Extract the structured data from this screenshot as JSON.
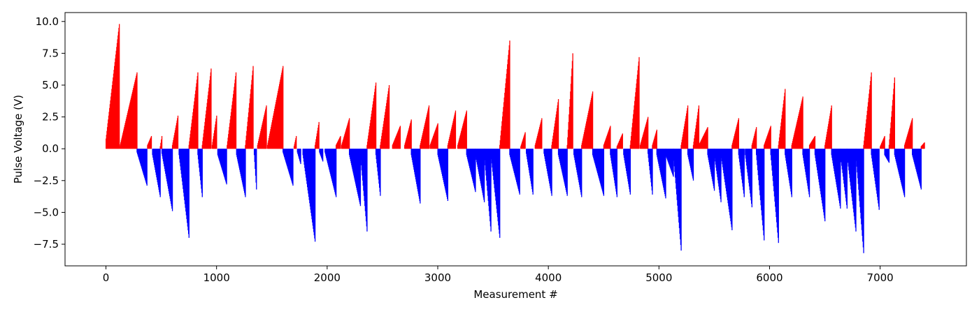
{
  "chart_data": {
    "type": "bar",
    "title": "",
    "xlabel": "Measurement #",
    "ylabel": "Pulse Voltage (V)",
    "xlim": [
      -370,
      7780
    ],
    "ylim": [
      -9.2,
      10.7
    ],
    "xticks": [
      0,
      1000,
      2000,
      3000,
      4000,
      5000,
      6000,
      7000
    ],
    "xtick_labels": [
      "0",
      "1000",
      "2000",
      "3000",
      "4000",
      "5000",
      "6000",
      "7000"
    ],
    "yticks": [
      -7.5,
      -5.0,
      -2.5,
      0.0,
      2.5,
      5.0,
      7.5,
      10.0
    ],
    "ytick_labels": [
      "−7.5",
      "−5.0",
      "−2.5",
      "0.0",
      "2.5",
      "5.0",
      "7.5",
      "10.0"
    ],
    "grid": false,
    "bar_width": 1,
    "colors": {
      "positive": "#ff0000",
      "negative": "#0000ff"
    },
    "series": [
      {
        "color_rule": "red for positive pulses, blue for negative pulses",
        "ramps": [
          [
            0,
            120,
            0.8,
            9.8
          ],
          [
            125,
            280,
            0.2,
            6.0
          ],
          [
            280,
            370,
            -0.3,
            -2.9
          ],
          [
            375,
            410,
            0.3,
            1.0
          ],
          [
            420,
            490,
            -0.5,
            -3.8
          ],
          [
            490,
            505,
            0.2,
            1.0
          ],
          [
            505,
            600,
            -0.4,
            -4.9
          ],
          [
            600,
            650,
            0.3,
            2.6
          ],
          [
            660,
            750,
            -0.5,
            -7.0
          ],
          [
            750,
            830,
            0.3,
            6.0
          ],
          [
            830,
            870,
            -0.5,
            -3.8
          ],
          [
            870,
            950,
            0.3,
            6.3
          ],
          [
            960,
            1000,
            0.3,
            2.6
          ],
          [
            1010,
            1090,
            -0.5,
            -2.8
          ],
          [
            1095,
            1175,
            0.3,
            6.0
          ],
          [
            1180,
            1260,
            -0.5,
            -3.8
          ],
          [
            1260,
            1330,
            0.3,
            6.5
          ],
          [
            1340,
            1360,
            -0.5,
            -3.2
          ],
          [
            1370,
            1450,
            0.3,
            3.4
          ],
          [
            1460,
            1600,
            0.3,
            6.5
          ],
          [
            1600,
            1690,
            -0.3,
            -2.9
          ],
          [
            1700,
            1720,
            0.2,
            1.0
          ],
          [
            1730,
            1760,
            -0.3,
            -1.2
          ],
          [
            1780,
            1890,
            -0.5,
            -7.3
          ],
          [
            1890,
            1925,
            0.3,
            2.1
          ],
          [
            1930,
            1960,
            -0.3,
            -1.0
          ],
          [
            1980,
            2080,
            -0.3,
            -3.8
          ],
          [
            2080,
            2120,
            0.3,
            1.0
          ],
          [
            2130,
            2200,
            0.3,
            2.4
          ],
          [
            2200,
            2300,
            -0.5,
            -4.5
          ],
          [
            2300,
            2360,
            -0.5,
            -6.5
          ],
          [
            2360,
            2440,
            0.3,
            5.2
          ],
          [
            2440,
            2480,
            -0.5,
            -3.7
          ],
          [
            2480,
            2560,
            0.3,
            5.0
          ],
          [
            2590,
            2660,
            0.3,
            1.8
          ],
          [
            2700,
            2760,
            0.3,
            2.3
          ],
          [
            2760,
            2840,
            -0.5,
            -4.3
          ],
          [
            2840,
            2920,
            0.3,
            3.4
          ],
          [
            2930,
            3000,
            0.3,
            2.0
          ],
          [
            3000,
            3090,
            -0.5,
            -4.1
          ],
          [
            3090,
            3160,
            0.3,
            3.0
          ],
          [
            3180,
            3260,
            0.3,
            3.0
          ],
          [
            3260,
            3340,
            -0.5,
            -3.4
          ],
          [
            3340,
            3420,
            -0.5,
            -4.2
          ],
          [
            3420,
            3480,
            -0.5,
            -6.5
          ],
          [
            3480,
            3560,
            -0.5,
            -7.0
          ],
          [
            3560,
            3650,
            0.3,
            8.5
          ],
          [
            3650,
            3740,
            -0.5,
            -3.6
          ],
          [
            3750,
            3790,
            0.2,
            1.3
          ],
          [
            3800,
            3860,
            -0.4,
            -3.6
          ],
          [
            3880,
            3940,
            0.3,
            2.4
          ],
          [
            3960,
            4030,
            -0.4,
            -3.7
          ],
          [
            4030,
            4090,
            0.3,
            3.9
          ],
          [
            4090,
            4170,
            -0.5,
            -3.7
          ],
          [
            4170,
            4220,
            0.3,
            7.5
          ],
          [
            4230,
            4300,
            -0.5,
            -3.8
          ],
          [
            4300,
            4400,
            0.3,
            4.5
          ],
          [
            4400,
            4500,
            -0.5,
            -3.7
          ],
          [
            4500,
            4560,
            0.3,
            1.8
          ],
          [
            4560,
            4620,
            -0.5,
            -3.8
          ],
          [
            4620,
            4670,
            0.2,
            1.2
          ],
          [
            4680,
            4740,
            -0.5,
            -3.6
          ],
          [
            4740,
            4820,
            0.3,
            7.2
          ],
          [
            4830,
            4900,
            0.3,
            2.5
          ],
          [
            4900,
            4940,
            -0.4,
            -3.6
          ],
          [
            4940,
            4980,
            0.3,
            1.5
          ],
          [
            4980,
            5060,
            -0.5,
            -3.9
          ],
          [
            5060,
            5130,
            -0.5,
            -2.2
          ],
          [
            5130,
            5200,
            -0.5,
            -8.0
          ],
          [
            5200,
            5260,
            0.3,
            3.4
          ],
          [
            5260,
            5310,
            -0.5,
            -2.5
          ],
          [
            5310,
            5360,
            0.3,
            3.4
          ],
          [
            5360,
            5440,
            0.3,
            1.7
          ],
          [
            5440,
            5500,
            -0.5,
            -3.3
          ],
          [
            5500,
            5560,
            -0.5,
            -4.2
          ],
          [
            5560,
            5660,
            -0.5,
            -6.4
          ],
          [
            5660,
            5720,
            0.3,
            2.4
          ],
          [
            5720,
            5770,
            -0.5,
            -3.8
          ],
          [
            5780,
            5840,
            -0.5,
            -4.6
          ],
          [
            5840,
            5880,
            0.3,
            1.7
          ],
          [
            5880,
            5950,
            -0.5,
            -7.2
          ],
          [
            5950,
            6010,
            0.3,
            1.8
          ],
          [
            6010,
            6080,
            -0.5,
            -7.4
          ],
          [
            6080,
            6140,
            0.3,
            4.7
          ],
          [
            6140,
            6200,
            -0.5,
            -3.8
          ],
          [
            6200,
            6300,
            0.3,
            4.1
          ],
          [
            6300,
            6360,
            -0.5,
            -3.8
          ],
          [
            6360,
            6410,
            0.3,
            1.0
          ],
          [
            6410,
            6500,
            -0.5,
            -5.7
          ],
          [
            6500,
            6560,
            0.3,
            3.4
          ],
          [
            6560,
            6640,
            -0.5,
            -4.7
          ],
          [
            6640,
            6700,
            -0.5,
            -4.7
          ],
          [
            6700,
            6780,
            -0.5,
            -6.5
          ],
          [
            6780,
            6850,
            -0.5,
            -8.2
          ],
          [
            6850,
            6920,
            0.3,
            6.0
          ],
          [
            6920,
            6990,
            -0.5,
            -4.8
          ],
          [
            7000,
            7040,
            0.2,
            1.0
          ],
          [
            7040,
            7080,
            -0.5,
            -1.1
          ],
          [
            7080,
            7130,
            0.3,
            5.6
          ],
          [
            7130,
            7220,
            -0.5,
            -3.8
          ],
          [
            7220,
            7290,
            0.3,
            2.4
          ],
          [
            7290,
            7370,
            -0.5,
            -3.2
          ],
          [
            7370,
            7400,
            0.2,
            0.5
          ]
        ]
      }
    ]
  }
}
